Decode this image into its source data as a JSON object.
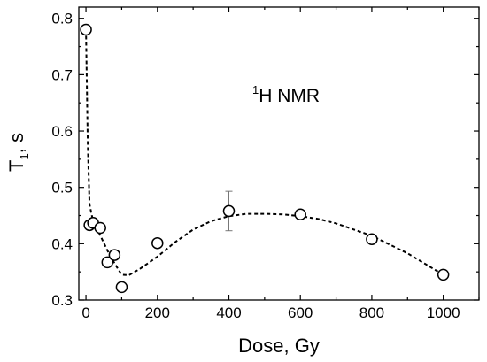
{
  "chart_data": {
    "type": "scatter",
    "annotation": {
      "superscript": "1",
      "text": "H NMR"
    },
    "xlabel": "Dose, Gy",
    "ylabel": {
      "main": "T",
      "subscript": "1",
      "suffix": ", s"
    },
    "xlim": [
      -20,
      1100
    ],
    "ylim": [
      0.3,
      0.82
    ],
    "x_ticks": [
      0,
      200,
      400,
      600,
      800,
      1000
    ],
    "y_ticks": [
      0.3,
      0.4,
      0.5,
      0.6,
      0.7,
      0.8
    ],
    "x_tick_labels": [
      "0",
      "200",
      "400",
      "600",
      "800",
      "1000"
    ],
    "y_tick_labels": [
      "0.3",
      "0.4",
      "0.5",
      "0.6",
      "0.7",
      "0.8"
    ],
    "x_minor_step": 100,
    "y_minor_step": 0.05,
    "grid": false,
    "series": [
      {
        "marker": "open-circle",
        "x": [
          0,
          10,
          20,
          40,
          60,
          80,
          100,
          200,
          400,
          600,
          800,
          1000
        ],
        "y": [
          0.78,
          0.433,
          0.437,
          0.428,
          0.367,
          0.38,
          0.323,
          0.401,
          0.458,
          0.452,
          0.408,
          0.345
        ],
        "error_bars": [
          {
            "x": 400,
            "y_low": 0.423,
            "y_high": 0.493
          }
        ]
      }
    ],
    "trend_line": {
      "style": "dashed",
      "x": [
        0,
        5,
        10,
        20,
        40,
        60,
        80,
        100,
        120,
        150,
        200,
        250,
        300,
        350,
        400,
        450,
        500,
        550,
        600,
        650,
        700,
        800,
        900,
        1000
      ],
      "y": [
        0.78,
        0.58,
        0.47,
        0.44,
        0.415,
        0.388,
        0.365,
        0.345,
        0.344,
        0.355,
        0.377,
        0.403,
        0.425,
        0.44,
        0.449,
        0.453,
        0.453,
        0.452,
        0.449,
        0.444,
        0.436,
        0.414,
        0.383,
        0.345
      ]
    }
  }
}
